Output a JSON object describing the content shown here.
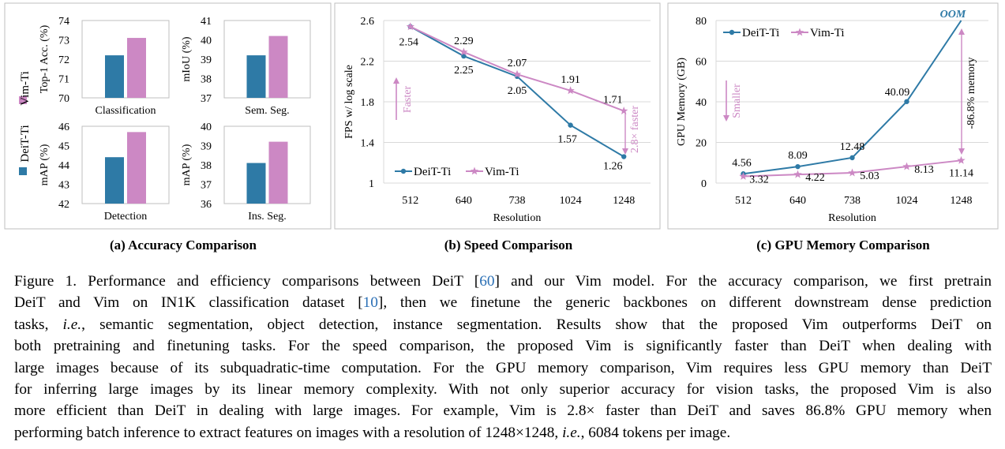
{
  "colors": {
    "deit": "#2e7aa6",
    "vim": "#cc88c4",
    "vim_marker": "#cc88c4",
    "link": "#2a6fb5",
    "axis": "#bfbfbf",
    "oom": "#2e7aa6"
  },
  "panel_a": {
    "title": "(a) Accuracy Comparison",
    "legend": {
      "vim": "Vim-Ti",
      "deit": "DeiT-Ti"
    }
  },
  "panel_b": {
    "title": "(b) Speed Comparison",
    "annotation_faster": "Faster",
    "annotation_speedup": "2.8× faster"
  },
  "panel_c": {
    "title": "(c) GPU Memory Comparison",
    "annotation_smaller": "Smaller",
    "annotation_memory": "-86.8% memory",
    "oom_label": "OOM"
  },
  "chart_data": [
    {
      "type": "bar",
      "panel": "a",
      "title": "Classification",
      "ylabel": "Top-1 Acc. (%)",
      "ylim": [
        70,
        74
      ],
      "yticks": [
        "70",
        "71",
        "72",
        "73",
        "74"
      ],
      "categories": [
        "Classification"
      ],
      "series": [
        {
          "name": "DeiT-Ti",
          "values": [
            72.2
          ]
        },
        {
          "name": "Vim-Ti",
          "values": [
            73.1
          ]
        }
      ]
    },
    {
      "type": "bar",
      "panel": "a",
      "title": "Sem. Seg.",
      "ylabel": "mIoU (%)",
      "ylim": [
        37,
        41
      ],
      "yticks": [
        "37",
        "38",
        "39",
        "40",
        "41"
      ],
      "categories": [
        "Sem. Seg."
      ],
      "series": [
        {
          "name": "DeiT-Ti",
          "values": [
            39.2
          ]
        },
        {
          "name": "Vim-Ti",
          "values": [
            40.2
          ]
        }
      ]
    },
    {
      "type": "bar",
      "panel": "a",
      "title": "Detection",
      "ylabel": "mAP (%)",
      "ylim": [
        42,
        46
      ],
      "yticks": [
        "42",
        "43",
        "44",
        "45",
        "46"
      ],
      "categories": [
        "Detection"
      ],
      "series": [
        {
          "name": "DeiT-Ti",
          "values": [
            44.4
          ]
        },
        {
          "name": "Vim-Ti",
          "values": [
            45.7
          ]
        }
      ]
    },
    {
      "type": "bar",
      "panel": "a",
      "title": "Ins. Seg.",
      "ylabel": "mAP (%)",
      "ylim": [
        36,
        40
      ],
      "yticks": [
        "36",
        "37",
        "38",
        "39",
        "40"
      ],
      "categories": [
        "Ins. Seg."
      ],
      "series": [
        {
          "name": "DeiT-Ti",
          "values": [
            38.1
          ]
        },
        {
          "name": "Vim-Ti",
          "values": [
            39.2
          ]
        }
      ]
    },
    {
      "type": "line",
      "panel": "b",
      "title": "(b) Speed Comparison",
      "xlabel": "Resolution",
      "ylabel": "FPS w/ log scale",
      "categories": [
        "512",
        "640",
        "738",
        "1024",
        "1248"
      ],
      "ylim": [
        1,
        2.6
      ],
      "yticks": [
        "1",
        "1.4",
        "1.8",
        "2.2",
        "2.6"
      ],
      "series": [
        {
          "name": "DeiT-Ti",
          "values": [
            2.54,
            2.25,
            2.05,
            1.57,
            1.26
          ],
          "labels": [
            "2.54",
            "2.25",
            "2.05",
            "1.57",
            "1.26"
          ]
        },
        {
          "name": "Vim-Ti",
          "values": [
            2.54,
            2.29,
            2.07,
            1.91,
            1.71
          ],
          "labels": [
            "",
            "2.29",
            "2.07",
            "1.91",
            "1.71"
          ]
        }
      ]
    },
    {
      "type": "line",
      "panel": "c",
      "title": "(c) GPU Memory Comparison",
      "xlabel": "Resolution",
      "ylabel": "GPU Memory (GB)",
      "categories": [
        "512",
        "640",
        "738",
        "1024",
        "1248"
      ],
      "ylim": [
        0,
        80
      ],
      "yticks": [
        "0",
        "20",
        "40",
        "60",
        "80"
      ],
      "series": [
        {
          "name": "DeiT-Ti",
          "values": [
            4.56,
            8.09,
            12.48,
            40.09,
            81
          ],
          "labels": [
            "4.56",
            "8.09",
            "12.48",
            "40.09",
            ""
          ]
        },
        {
          "name": "Vim-Ti",
          "values": [
            3.32,
            4.22,
            5.03,
            8.13,
            11.14
          ],
          "labels": [
            "3.32",
            "4.22",
            "5.03",
            "8.13",
            "11.14"
          ]
        }
      ]
    }
  ],
  "caption": {
    "l1_a": "Figure 1. Performance and efficiency comparisons between DeiT [",
    "l1_ref": "60",
    "l1_b": "] and our Vim model. For the accuracy comparison, we first pretrain",
    "l2_a": "DeiT and Vim on IN1K classification dataset [",
    "l2_ref": "10",
    "l2_b": "], then we finetune the generic backbones on different downstream dense prediction",
    "l3_a": "tasks, ",
    "l3_ie": "i.e.",
    "l3_b": ", semantic segmentation, object detection, instance segmentation. Results show that the proposed Vim outperforms DeiT on",
    "l4": "both pretraining and finetuning tasks. For the speed comparison, the proposed Vim is significantly faster than DeiT when dealing with",
    "l5": "large images because of its subquadratic-time computation. For the GPU memory comparison, Vim requires less GPU memory than DeiT",
    "l6": "for inferring large images by its linear memory complexity. With not only superior accuracy for vision tasks, the proposed Vim is also",
    "l7": "more efficient than DeiT in dealing with large images. For example, Vim is 2.8× faster than DeiT and saves 86.8% GPU memory when",
    "l8_a": "performing batch inference to extract features on images with a resolution of 1248×1248, ",
    "l8_ie": "i.e.",
    "l8_b": ", 6084 tokens per image."
  }
}
